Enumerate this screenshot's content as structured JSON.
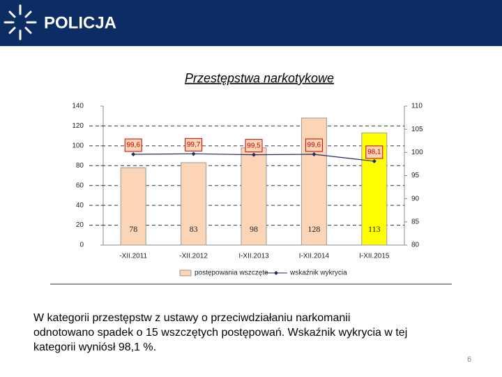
{
  "header": {
    "brand": "POLICJA"
  },
  "chart_data": {
    "type": "bar_line",
    "title": "Przestępstwa narkotykowe",
    "categories": [
      "-XII.2011",
      "-XII.2012",
      "I-XII.2013",
      "I-XII.2014",
      "I-XII.2015"
    ],
    "series": [
      {
        "name": "postępowania wszczęte",
        "type": "bar",
        "color": "#fbd5b5",
        "colors": [
          "#fbd5b5",
          "#fbd5b5",
          "#fbd5b5",
          "#fbd5b5",
          "#ffff00"
        ],
        "values": [
          78,
          83,
          98,
          128,
          113
        ]
      },
      {
        "name": "wskaźnik wykrycia",
        "type": "line",
        "axis": "y2",
        "color": "#1f2a6b",
        "values": [
          99.6,
          99.7,
          99.5,
          99.6,
          98.1
        ],
        "value_labels": [
          "99,6",
          "99,7",
          "99,5",
          "99,6",
          "98,1"
        ]
      }
    ],
    "ylim": [
      0,
      140
    ],
    "yticks": [
      0,
      20,
      40,
      60,
      80,
      100,
      120,
      140
    ],
    "y2lim": [
      80,
      110
    ],
    "y2ticks": [
      80,
      85,
      90,
      95,
      100,
      105,
      110
    ],
    "grid": true,
    "legend": "bottom"
  },
  "body": {
    "lines": [
      "W kategorii przestępstw z ustawy o przeciwdziałaniu narkomanii",
      "odnotowano spadek o 15 wszczętych postępowań. Wskaźnik wykrycia w tej",
      "kategorii wyniósł 98,1 %."
    ]
  },
  "page_number": "6"
}
